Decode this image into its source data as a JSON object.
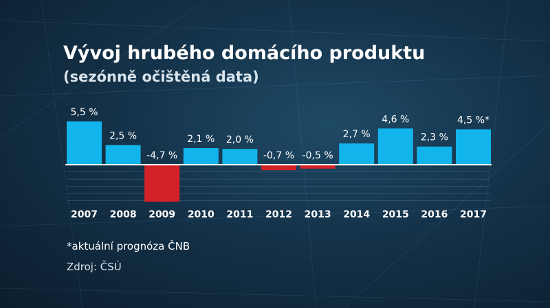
{
  "colors": {
    "positive": "#12b4ec",
    "negative": "#d32226",
    "axis": "#ffffff",
    "grid": "#3f6c88"
  },
  "chart_data": {
    "type": "bar",
    "title": "Vývoj hrubého domácího produktu",
    "subtitle": "(sezónně očištěná data)",
    "categories": [
      "2007",
      "2008",
      "2009",
      "2010",
      "2011",
      "2012",
      "2013",
      "2014",
      "2015",
      "2016",
      "2017"
    ],
    "values": [
      5.5,
      2.5,
      -4.7,
      2.1,
      2.0,
      -0.7,
      -0.5,
      2.7,
      4.6,
      2.3,
      4.5
    ],
    "data_labels": [
      "5,5 %",
      "2,5 %",
      "-4,7 %",
      "2,1 %",
      "2,0 %",
      "-0,7 %",
      "-0,5 %",
      "2,7 %",
      "4,6 %",
      "2,3 %",
      "4,5 %*"
    ],
    "xlabel": "",
    "ylabel": "",
    "ylim": [
      -4.7,
      5.5
    ],
    "grid": true,
    "legend": "none"
  },
  "notes": {
    "footnote": "*aktuální prognóza ČNB",
    "source": "Zdroj: ČSÚ"
  }
}
